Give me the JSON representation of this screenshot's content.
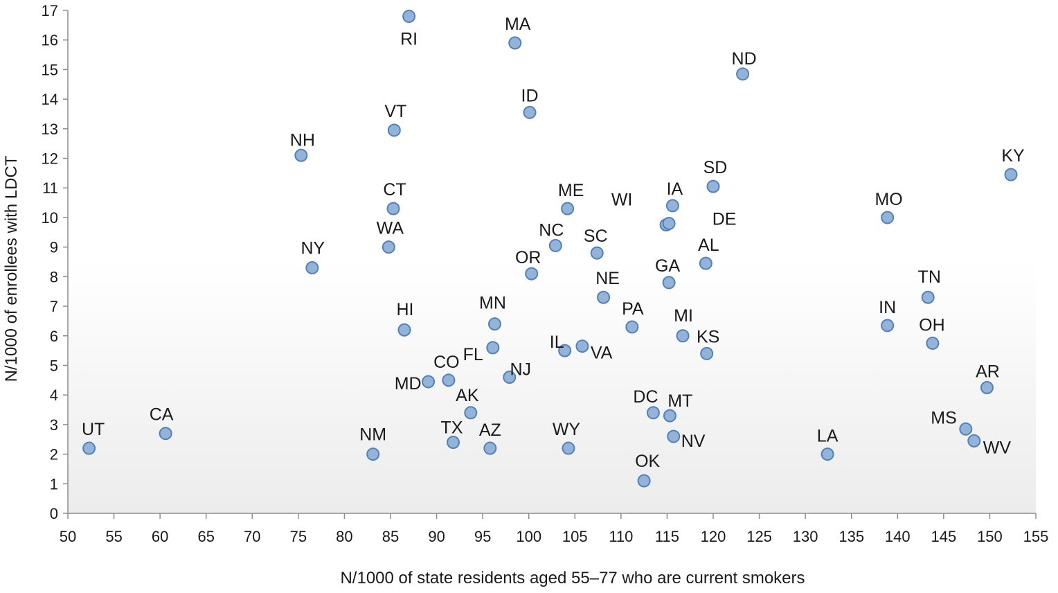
{
  "chart_data": {
    "type": "scatter",
    "xlabel": "N/1000 of state residents aged 55–77 who are current smokers",
    "ylabel": "N/1000 of enrollees with LDCT",
    "xlim": [
      50,
      155
    ],
    "ylim": [
      0,
      17
    ],
    "x_ticks": [
      50,
      55,
      60,
      65,
      70,
      75,
      80,
      85,
      90,
      95,
      100,
      105,
      110,
      115,
      120,
      125,
      130,
      135,
      140,
      145,
      150,
      155
    ],
    "y_ticks": [
      0,
      1,
      2,
      3,
      4,
      5,
      6,
      7,
      8,
      9,
      10,
      11,
      12,
      13,
      14,
      15,
      16,
      17
    ],
    "grid": false,
    "legend": "none",
    "marker_color": "#95b3d7",
    "marker_edge_color": "#4f81bd",
    "background_gradient": [
      "#ffffff",
      "#ececec"
    ],
    "points": [
      {
        "label": "RI",
        "x": 87.0,
        "y": 16.8
      },
      {
        "label": "MA",
        "x": 98.5,
        "y": 15.9
      },
      {
        "label": "ND",
        "x": 123.2,
        "y": 14.85
      },
      {
        "label": "ID",
        "x": 100.1,
        "y": 13.55
      },
      {
        "label": "VT",
        "x": 85.4,
        "y": 12.95
      },
      {
        "label": "NH",
        "x": 75.3,
        "y": 12.1
      },
      {
        "label": "KY",
        "x": 152.3,
        "y": 11.45
      },
      {
        "label": "SD",
        "x": 120.0,
        "y": 11.05
      },
      {
        "label": "IA",
        "x": 115.6,
        "y": 10.4
      },
      {
        "label": "ME",
        "x": 104.2,
        "y": 10.3
      },
      {
        "label": "CT",
        "x": 85.3,
        "y": 10.3
      },
      {
        "label": "MO",
        "x": 138.9,
        "y": 10.0
      },
      {
        "label": "WI",
        "x": 114.9,
        "y": 9.75
      },
      {
        "label": "DE",
        "x": 115.2,
        "y": 9.8
      },
      {
        "label": "NC",
        "x": 102.9,
        "y": 9.05
      },
      {
        "label": "WA",
        "x": 84.8,
        "y": 9.0
      },
      {
        "label": "SC",
        "x": 107.4,
        "y": 8.8
      },
      {
        "label": "AL",
        "x": 119.2,
        "y": 8.45
      },
      {
        "label": "NY",
        "x": 76.5,
        "y": 8.3
      },
      {
        "label": "OR",
        "x": 100.3,
        "y": 8.1
      },
      {
        "label": "GA",
        "x": 115.2,
        "y": 7.8
      },
      {
        "label": "NE",
        "x": 108.1,
        "y": 7.3
      },
      {
        "label": "TN",
        "x": 143.3,
        "y": 7.3
      },
      {
        "label": "MN",
        "x": 96.3,
        "y": 6.4
      },
      {
        "label": "IN",
        "x": 138.9,
        "y": 6.35
      },
      {
        "label": "PA",
        "x": 111.2,
        "y": 6.3
      },
      {
        "label": "HI",
        "x": 86.5,
        "y": 6.2
      },
      {
        "label": "MI",
        "x": 116.7,
        "y": 6.0
      },
      {
        "label": "OH",
        "x": 143.8,
        "y": 5.75
      },
      {
        "label": "VA",
        "x": 105.8,
        "y": 5.65
      },
      {
        "label": "FL",
        "x": 96.1,
        "y": 5.6
      },
      {
        "label": "IL",
        "x": 103.9,
        "y": 5.5
      },
      {
        "label": "KS",
        "x": 119.3,
        "y": 5.4
      },
      {
        "label": "NJ",
        "x": 97.9,
        "y": 4.6
      },
      {
        "label": "CO",
        "x": 91.3,
        "y": 4.5
      },
      {
        "label": "MD",
        "x": 89.1,
        "y": 4.45
      },
      {
        "label": "AR",
        "x": 149.7,
        "y": 4.25
      },
      {
        "label": "AK",
        "x": 93.7,
        "y": 3.4
      },
      {
        "label": "DC",
        "x": 113.5,
        "y": 3.4
      },
      {
        "label": "MT",
        "x": 115.3,
        "y": 3.3
      },
      {
        "label": "MS",
        "x": 147.4,
        "y": 2.85
      },
      {
        "label": "CA",
        "x": 60.6,
        "y": 2.7
      },
      {
        "label": "NV",
        "x": 115.7,
        "y": 2.6
      },
      {
        "label": "WV",
        "x": 148.3,
        "y": 2.45
      },
      {
        "label": "TX",
        "x": 91.8,
        "y": 2.4
      },
      {
        "label": "UT",
        "x": 52.3,
        "y": 2.2
      },
      {
        "label": "AZ",
        "x": 95.8,
        "y": 2.2
      },
      {
        "label": "WY",
        "x": 104.3,
        "y": 2.2
      },
      {
        "label": "NM",
        "x": 83.1,
        "y": 2.0
      },
      {
        "label": "LA",
        "x": 132.4,
        "y": 2.0
      },
      {
        "label": "OK",
        "x": 112.5,
        "y": 1.1
      }
    ]
  }
}
